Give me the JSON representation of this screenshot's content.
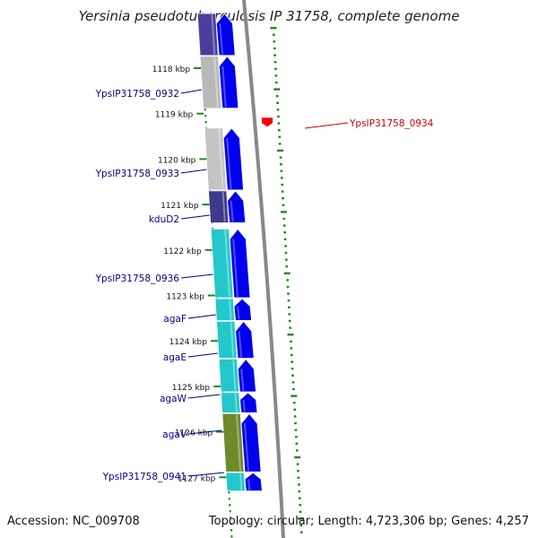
{
  "title": "Yersinia pseudotuberculosis IP 31758, complete genome",
  "footer": {
    "accession": "Accession: NC_009708",
    "summary": "Topology: circular; Length: 4,723,306 bp; Genes: 4,257"
  },
  "ticks": [
    {
      "label": "1118 kbp",
      "kbp": 1118
    },
    {
      "label": "1119 kbp",
      "kbp": 1119
    },
    {
      "label": "1120 kbp",
      "kbp": 1120
    },
    {
      "label": "1121 kbp",
      "kbp": 1121
    },
    {
      "label": "1122 kbp",
      "kbp": 1122
    },
    {
      "label": "1123 kbp",
      "kbp": 1123
    },
    {
      "label": "1124 kbp",
      "kbp": 1124
    },
    {
      "label": "1125 kbp",
      "kbp": 1125
    },
    {
      "label": "1126 kbp",
      "kbp": 1126
    },
    {
      "label": "1127 kbp",
      "kbp": 1127
    }
  ],
  "genes": [
    {
      "label": "",
      "start": 1116.8,
      "end": 1117.72,
      "strand": "+",
      "cog": "#4a3f99"
    },
    {
      "label": "YpsIP31758_0932",
      "start": 1117.74,
      "end": 1118.88,
      "strand": "+",
      "cog": "#b8b8b8"
    },
    {
      "label": "YpsIP31758_0933",
      "start": 1119.32,
      "end": 1120.68,
      "strand": "+",
      "cog": "#c4c4c4"
    },
    {
      "label": "kduD2",
      "start": 1120.7,
      "end": 1121.4,
      "strand": "+",
      "cog": "#3e3a8c"
    },
    {
      "label": "YpsIP31758_0936",
      "start": 1121.54,
      "end": 1123.05,
      "strand": "+",
      "cog": "#22c8cc"
    },
    {
      "label": "agaF",
      "start": 1123.07,
      "end": 1123.55,
      "strand": "+",
      "cog": "#22c8cc"
    },
    {
      "label": "agaE",
      "start": 1123.57,
      "end": 1124.38,
      "strand": "+",
      "cog": "#22c8cc"
    },
    {
      "label": "agaW",
      "start": 1124.4,
      "end": 1125.12,
      "strand": "+",
      "cog": "#22c8cc"
    },
    {
      "label": "agaV",
      "start": 1125.14,
      "end": 1125.58,
      "strand": "+",
      "cog": "#22c8cc"
    },
    {
      "label": "YpsIP31758_0941",
      "start": 1125.6,
      "end": 1126.88,
      "strand": "+",
      "cog": "#6e8a2a"
    },
    {
      "label": "",
      "start": 1126.9,
      "end": 1127.3,
      "strand": "+",
      "cog": "#22c8cc"
    }
  ],
  "reverse_genes": [
    {
      "label": "YpsIP31758_0934",
      "start": 1119.05,
      "end": 1119.25,
      "strand": "-",
      "color": "#ff0000"
    }
  ],
  "colors": {
    "cds": "#0000ee",
    "backbone": "#888888",
    "gc_track": "#1a8a1a",
    "label_forward": "#00008b",
    "label_reverse": "#cc0000",
    "reverse_cds": "#ff0000"
  }
}
